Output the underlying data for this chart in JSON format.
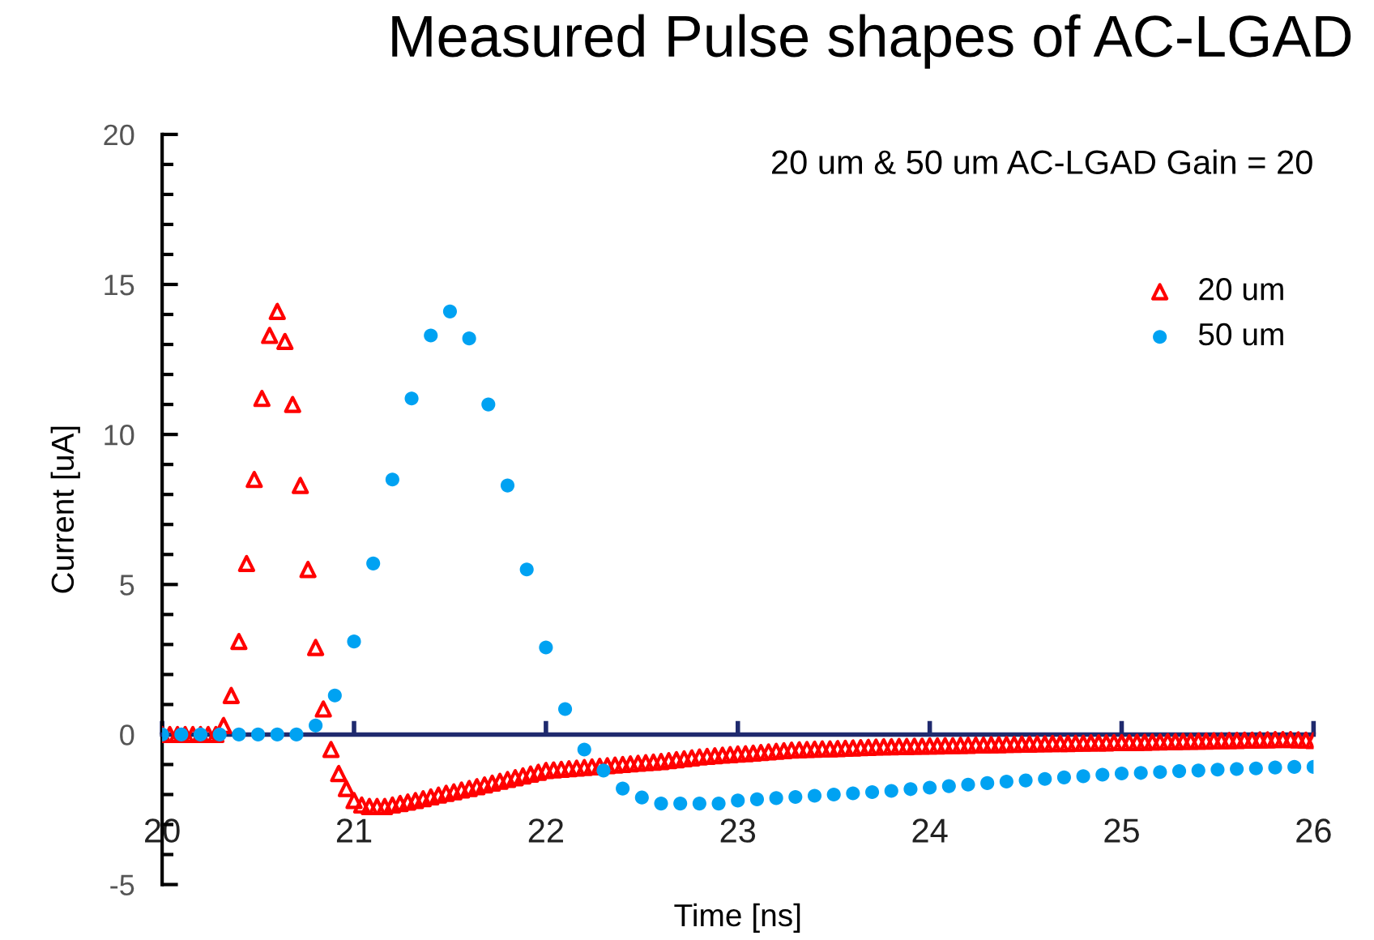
{
  "chart_data": {
    "type": "scatter",
    "title": "Measured Pulse shapes of AC-LGAD",
    "xlabel": "Time [ns]",
    "ylabel": "Current [uA]",
    "annotations": [
      "20 um & 50 um AC-LGAD Gain = 20"
    ],
    "xlim": [
      20,
      26
    ],
    "xticks": [
      20,
      21,
      22,
      23,
      24,
      25,
      26
    ],
    "ylim": [
      -5,
      20
    ],
    "yticks": [
      -5,
      0,
      5,
      10,
      15,
      20
    ],
    "grid": false,
    "legend": "right",
    "series": [
      {
        "name": "20 um",
        "color": "#ff0000",
        "marker": "triangle",
        "x": [
          20.0,
          20.04,
          20.08,
          20.12,
          20.16,
          20.2,
          20.24,
          20.28,
          20.32,
          20.36,
          20.4,
          20.44,
          20.48,
          20.52,
          20.56,
          20.6,
          20.64,
          20.68,
          20.72,
          20.76,
          20.8,
          20.84,
          20.88,
          20.92,
          20.96,
          21.0,
          21.04,
          21.08,
          21.12,
          21.16,
          21.2,
          21.24,
          21.28,
          21.32,
          21.36,
          21.4,
          21.44,
          21.48,
          21.52,
          21.56,
          21.6,
          21.64,
          21.68,
          21.72,
          21.76,
          21.8,
          21.84,
          21.88,
          21.92,
          21.96,
          22.0,
          22.04,
          22.08,
          22.12,
          22.16,
          22.2,
          22.24,
          22.28,
          22.32,
          22.36,
          22.4,
          22.44,
          22.48,
          22.52,
          22.56,
          22.6,
          22.64,
          22.68,
          22.72,
          22.76,
          22.8,
          22.84,
          22.88,
          22.92,
          22.96,
          23.0,
          23.04,
          23.08,
          23.12,
          23.16,
          23.2,
          23.24,
          23.28,
          23.32,
          23.36,
          23.4,
          23.44,
          23.48,
          23.52,
          23.56,
          23.6,
          23.64,
          23.68,
          23.72,
          23.76,
          23.8,
          23.84,
          23.88,
          23.92,
          23.96,
          24.0,
          24.04,
          24.08,
          24.12,
          24.16,
          24.2,
          24.24,
          24.28,
          24.32,
          24.36,
          24.4,
          24.44,
          24.48,
          24.52,
          24.56,
          24.6,
          24.64,
          24.68,
          24.72,
          24.76,
          24.8,
          24.84,
          24.88,
          24.92,
          24.96,
          25.0,
          25.04,
          25.08,
          25.12,
          25.16,
          25.2,
          25.24,
          25.28,
          25.32,
          25.36,
          25.4,
          25.44,
          25.48,
          25.52,
          25.56,
          25.6,
          25.64,
          25.68,
          25.72,
          25.76,
          25.8,
          25.84,
          25.88,
          25.92,
          25.96,
          26.0
        ],
        "values": [
          0,
          0,
          0,
          0,
          0,
          0,
          0,
          0,
          0.3,
          1.3,
          3.1,
          5.7,
          8.5,
          11.2,
          13.3,
          14.1,
          13.1,
          11.0,
          8.3,
          5.5,
          2.9,
          0.85,
          -0.5,
          -1.3,
          -1.8,
          -2.2,
          -2.35,
          -2.4,
          -2.4,
          -2.4,
          -2.35,
          -2.3,
          -2.25,
          -2.2,
          -2.14,
          -2.08,
          -2.02,
          -1.96,
          -1.91,
          -1.85,
          -1.8,
          -1.74,
          -1.68,
          -1.62,
          -1.56,
          -1.5,
          -1.44,
          -1.38,
          -1.32,
          -1.26,
          -1.2,
          -1.18,
          -1.16,
          -1.14,
          -1.12,
          -1.1,
          -1.08,
          -1.06,
          -1.04,
          -1.02,
          -1.0,
          -0.98,
          -0.96,
          -0.94,
          -0.92,
          -0.9,
          -0.87,
          -0.84,
          -0.81,
          -0.78,
          -0.75,
          -0.73,
          -0.71,
          -0.69,
          -0.67,
          -0.65,
          -0.64,
          -0.62,
          -0.6,
          -0.58,
          -0.56,
          -0.54,
          -0.52,
          -0.51,
          -0.5,
          -0.49,
          -0.48,
          -0.48,
          -0.47,
          -0.46,
          -0.45,
          -0.44,
          -0.43,
          -0.42,
          -0.41,
          -0.41,
          -0.4,
          -0.4,
          -0.39,
          -0.39,
          -0.38,
          -0.38,
          -0.37,
          -0.37,
          -0.36,
          -0.36,
          -0.35,
          -0.35,
          -0.34,
          -0.34,
          -0.33,
          -0.33,
          -0.32,
          -0.32,
          -0.31,
          -0.31,
          -0.3,
          -0.3,
          -0.3,
          -0.29,
          -0.29,
          -0.28,
          -0.28,
          -0.28,
          -0.27,
          -0.27,
          -0.27,
          -0.26,
          -0.26,
          -0.25,
          -0.25,
          -0.24,
          -0.24,
          -0.23,
          -0.23,
          -0.22,
          -0.22,
          -0.21,
          -0.21,
          -0.2,
          -0.2,
          -0.19,
          -0.19,
          -0.18,
          -0.18,
          -0.17,
          -0.17,
          -0.17,
          -0.18,
          -0.19,
          -0.2
        ]
      },
      {
        "name": "50 um",
        "color": "#00a2f2",
        "marker": "circle",
        "x": [
          20.0,
          20.1,
          20.2,
          20.3,
          20.4,
          20.5,
          20.6,
          20.7,
          20.8,
          20.9,
          21.0,
          21.1,
          21.2,
          21.3,
          21.4,
          21.5,
          21.6,
          21.7,
          21.8,
          21.9,
          22.0,
          22.1,
          22.2,
          22.3,
          22.4,
          22.5,
          22.6,
          22.7,
          22.8,
          22.9,
          23.0,
          23.1,
          23.2,
          23.3,
          23.4,
          23.5,
          23.6,
          23.7,
          23.8,
          23.9,
          24.0,
          24.1,
          24.2,
          24.3,
          24.4,
          24.5,
          24.6,
          24.7,
          24.8,
          24.9,
          25.0,
          25.1,
          25.2,
          25.3,
          25.4,
          25.5,
          25.6,
          25.7,
          25.8,
          25.9,
          26.0
        ],
        "values": [
          0,
          0,
          0,
          0,
          0,
          0,
          0,
          0,
          0.3,
          1.3,
          3.1,
          5.7,
          8.5,
          11.2,
          13.3,
          14.1,
          13.2,
          11.0,
          8.3,
          5.5,
          2.9,
          0.85,
          -0.5,
          -1.2,
          -1.8,
          -2.1,
          -2.3,
          -2.3,
          -2.3,
          -2.3,
          -2.2,
          -2.16,
          -2.12,
          -2.08,
          -2.04,
          -2.0,
          -1.96,
          -1.92,
          -1.88,
          -1.82,
          -1.77,
          -1.72,
          -1.67,
          -1.62,
          -1.57,
          -1.53,
          -1.48,
          -1.43,
          -1.39,
          -1.34,
          -1.3,
          -1.28,
          -1.25,
          -1.22,
          -1.2,
          -1.17,
          -1.15,
          -1.13,
          -1.1,
          -1.08,
          -1.08
        ]
      }
    ]
  }
}
